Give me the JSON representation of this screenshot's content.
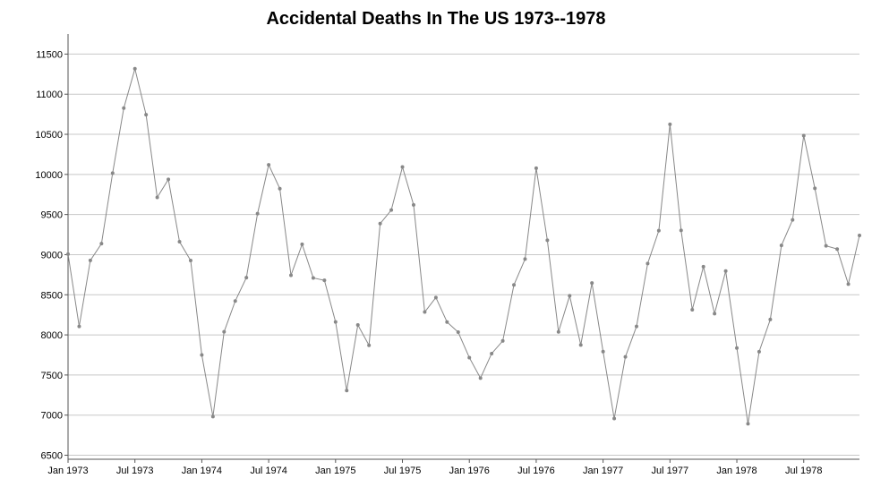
{
  "chart_data": {
    "type": "line",
    "title": "Accidental Deaths In The US 1973--1978",
    "xlabel": "",
    "ylabel": "",
    "ylim": [
      6450,
      11750
    ],
    "xlim": [
      "1973-01",
      "1978-12"
    ],
    "grid": true,
    "legend": "none",
    "x_ticks": [
      "Jan 1973",
      "Jul 1973",
      "Jan 1974",
      "Jul 1974",
      "Jan 1975",
      "Jul 1975",
      "Jan 1976",
      "Jul 1976",
      "Jan 1977",
      "Jul 1977",
      "Jan 1978",
      "Jul 1978"
    ],
    "y_ticks": [
      6500,
      7000,
      7500,
      8000,
      8500,
      9000,
      9500,
      10000,
      10500,
      11000,
      11500
    ],
    "colors": {
      "line": "#888888",
      "grid": "#c8c8c8",
      "axis": "#555555"
    },
    "series": [
      {
        "x": [
          "1973-01",
          "1973-02",
          "1973-03",
          "1973-04",
          "1973-05",
          "1973-06",
          "1973-07",
          "1973-08",
          "1973-09",
          "1973-10",
          "1973-11",
          "1973-12",
          "1974-01",
          "1974-02",
          "1974-03",
          "1974-04",
          "1974-05",
          "1974-06",
          "1974-07",
          "1974-08",
          "1974-09",
          "1974-10",
          "1974-11",
          "1974-12",
          "1975-01",
          "1975-02",
          "1975-03",
          "1975-04",
          "1975-05",
          "1975-06",
          "1975-07",
          "1975-08",
          "1975-09",
          "1975-10",
          "1975-11",
          "1975-12",
          "1976-01",
          "1976-02",
          "1976-03",
          "1976-04",
          "1976-05",
          "1976-06",
          "1976-07",
          "1976-08",
          "1976-09",
          "1976-10",
          "1976-11",
          "1976-12",
          "1977-01",
          "1977-02",
          "1977-03",
          "1977-04",
          "1977-05",
          "1977-06",
          "1977-07",
          "1977-08",
          "1977-09",
          "1977-10",
          "1977-11",
          "1977-12",
          "1978-01",
          "1978-02",
          "1978-03",
          "1978-04",
          "1978-05",
          "1978-06",
          "1978-07",
          "1978-08",
          "1978-09",
          "1978-10",
          "1978-11",
          "1978-12"
        ],
        "values": [
          9007,
          8106,
          8928,
          9137,
          10017,
          10826,
          11317,
          10744,
          9713,
          9938,
          9161,
          8927,
          7750,
          6981,
          8038,
          8422,
          8714,
          9512,
          10120,
          9823,
          8743,
          9129,
          8710,
          8680,
          8162,
          7306,
          8124,
          7870,
          9387,
          9556,
          10093,
          9620,
          8285,
          8466,
          8160,
          8034,
          7717,
          7461,
          7767,
          7925,
          8623,
          8945,
          10078,
          9179,
          8037,
          8488,
          7874,
          8647,
          7792,
          6957,
          7726,
          8106,
          8890,
          9299,
          10625,
          9302,
          8314,
          8850,
          8265,
          8796,
          7836,
          6892,
          7791,
          8192,
          9115,
          9434,
          10484,
          9827,
          9110,
          9070,
          8633,
          9240
        ]
      }
    ]
  }
}
